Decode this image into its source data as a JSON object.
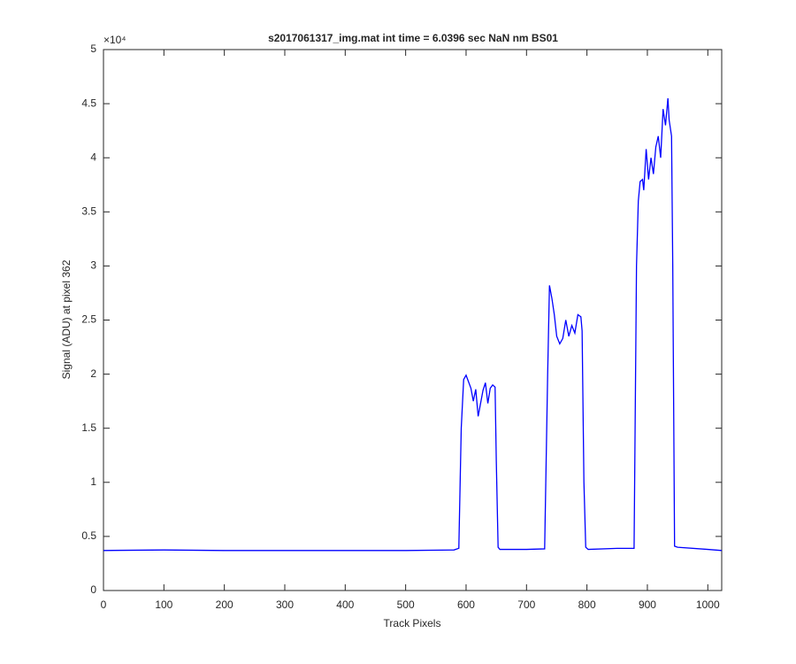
{
  "chart_data": {
    "type": "line",
    "title": "s2017061317_img.mat int time = 6.0396 sec  NaN nm BS01",
    "x_label": "Track Pixels",
    "y_label": "Signal (ADU) at pixel 362",
    "y_exponent_label": "×10⁴",
    "color": "#0000ff",
    "x": [
      0,
      100,
      200,
      300,
      400,
      500,
      580,
      588,
      592,
      596,
      600,
      604,
      608,
      612,
      616,
      620,
      624,
      628,
      632,
      636,
      640,
      644,
      648,
      650,
      653,
      656,
      700,
      730,
      735,
      738,
      742,
      746,
      750,
      755,
      760,
      765,
      770,
      775,
      780,
      785,
      790,
      792,
      795,
      798,
      802,
      850,
      878,
      882,
      885,
      888,
      892,
      894,
      898,
      902,
      906,
      910,
      914,
      918,
      922,
      926,
      930,
      934,
      936,
      940,
      942,
      945,
      950,
      1000,
      1023
    ],
    "values": [
      3700,
      3750,
      3700,
      3700,
      3700,
      3700,
      3750,
      3900,
      15000,
      19500,
      19900,
      19300,
      18700,
      17500,
      18600,
      16100,
      17300,
      18500,
      19200,
      17300,
      18700,
      19000,
      18800,
      12000,
      4000,
      3800,
      3800,
      3850,
      20000,
      28200,
      27000,
      25500,
      23500,
      22800,
      23300,
      25000,
      23500,
      24500,
      23800,
      25500,
      25300,
      24000,
      10000,
      4000,
      3800,
      3900,
      3900,
      30000,
      36000,
      37800,
      38000,
      37000,
      40800,
      38000,
      40000,
      38500,
      41000,
      42000,
      40000,
      44500,
      43000,
      45500,
      43500,
      42000,
      30000,
      4100,
      4000,
      3800,
      3700
    ],
    "xlim": [
      0,
      1023
    ],
    "ylim": [
      0,
      50000
    ],
    "xticks": [
      0,
      100,
      200,
      300,
      400,
      500,
      600,
      700,
      800,
      900,
      1000
    ],
    "yticks": [
      0,
      {
        "value": 5000,
        "label": "0.5"
      },
      {
        "value": 10000,
        "label": "1"
      },
      {
        "value": 15000,
        "label": "1.5"
      },
      {
        "value": 20000,
        "label": "2"
      },
      {
        "value": 25000,
        "label": "2.5"
      },
      {
        "value": 30000,
        "label": "3"
      },
      {
        "value": 35000,
        "label": "3.5"
      },
      {
        "value": 40000,
        "label": "4"
      },
      {
        "value": 45000,
        "label": "4.5"
      },
      {
        "value": 50000,
        "label": "5"
      }
    ]
  }
}
